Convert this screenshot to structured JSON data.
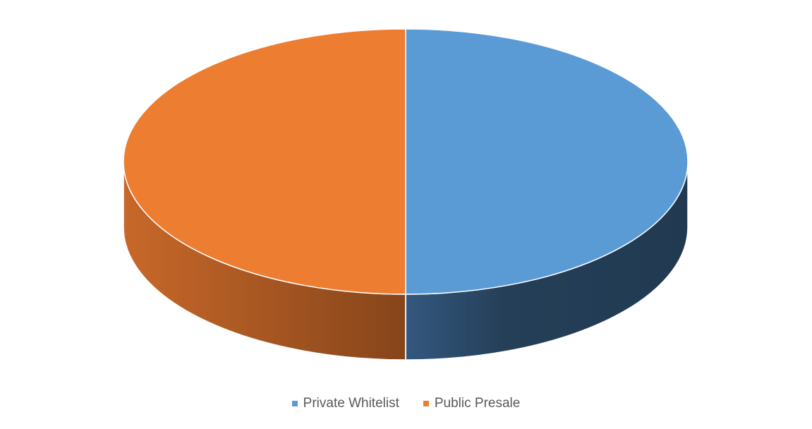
{
  "chart_data": {
    "type": "pie",
    "style": "3d",
    "categories": [
      "Private Whitelist",
      "Public Presale"
    ],
    "values": [
      50,
      50
    ],
    "legend": "bottom",
    "colors": {
      "Private Whitelist": "#5B9BD5",
      "Public Presale": "#ED7D31",
      "Private Whitelist side": "#243F58",
      "Public Presale side": "#B05A1F",
      "separator": "#FFFFFF"
    }
  }
}
